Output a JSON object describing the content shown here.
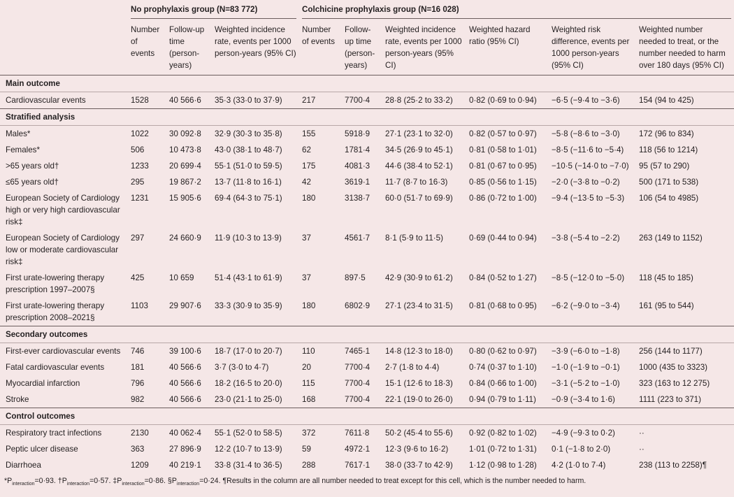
{
  "groups": [
    "No prophylaxis group (N=83 772)",
    "Colchicine prophylaxis group (N=16 028)"
  ],
  "columns": [
    "Number of events",
    "Follow-up time (person-years)",
    "Weighted incidence rate, events per 1000 person-years (95% CI)",
    "Number of events",
    "Follow-up time (person-years)",
    "Weighted incidence rate, events per 1000 person-years (95% CI)",
    "Weighted hazard ratio (95% CI)",
    "Weighted risk difference, events per 1000 person-years (95% CI)",
    "Weighted number needed to treat, or the number needed to harm over 180 days (95% CI)"
  ],
  "sections": [
    {
      "title": "Main outcome",
      "rows": [
        {
          "label": "Cardiovascular events",
          "cells": [
            "1528",
            "40 566·6",
            "35·3 (33·0 to 37·9)",
            "217",
            "7700·4",
            "28·8 (25·2 to 33·2)",
            "0·82 (0·69 to 0·94)",
            "−6·5 (−9·4 to −3·6)",
            "154 (94 to 425)"
          ]
        }
      ]
    },
    {
      "title": "Stratified analysis",
      "rows": [
        {
          "label": "Males*",
          "cells": [
            "1022",
            "30 092·8",
            "32·9 (30·3 to 35·8)",
            "155",
            "5918·9",
            "27·1 (23·1 to 32·0)",
            "0·82 (0·57 to 0·97)",
            "−5·8 (−8·6 to −3·0)",
            "172 (96 to 834)"
          ]
        },
        {
          "label": "Females*",
          "cells": [
            "506",
            "10 473·8",
            "43·0 (38·1 to 48·7)",
            "62",
            "1781·4",
            "34·5 (26·9 to 45·1)",
            "0·81 (0·58 to 1·01)",
            "−8·5 (−11·6 to −5·4)",
            "118 (56 to 1214)"
          ]
        },
        {
          "label": ">65 years old†",
          "cells": [
            "1233",
            "20 699·4",
            "55·1 (51·0 to 59·5)",
            "175",
            "4081·3",
            "44·6 (38·4 to 52·1)",
            "0·81 (0·67 to 0·95)",
            "−10·5 (−14·0 to −7·0)",
            "95 (57 to 290)"
          ]
        },
        {
          "label": "≤65 years old†",
          "cells": [
            "295",
            "19 867·2",
            "13·7 (11·8 to 16·1)",
            "42",
            "3619·1",
            "11·7 (8·7 to 16·3)",
            "0·85 (0·56 to 1·15)",
            "−2·0 (−3·8 to −0·2)",
            "500 (171 to 538)"
          ]
        },
        {
          "label": "European Society of Cardiology high or very high cardiovascular risk‡",
          "cells": [
            "1231",
            "15 905·6",
            "69·4 (64·3 to 75·1)",
            "180",
            "3138·7",
            "60·0 (51·7 to 69·9)",
            "0·86 (0·72 to 1·00)",
            "−9·4 (−13·5 to −5·3)",
            "106 (54 to 4985)"
          ]
        },
        {
          "label": "European Society of Cardiology low or moderate cardiovascular risk‡",
          "cells": [
            "297",
            "24 660·9",
            "11·9 (10·3 to 13·9)",
            "37",
            "4561·7",
            "8·1 (5·9 to 11·5)",
            "0·69 (0·44 to 0·94)",
            "−3·8 (−5·4 to −2·2)",
            "263 (149 to 1152)"
          ]
        },
        {
          "label": "First urate-lowering therapy prescription 1997–2007§",
          "cells": [
            "425",
            "10 659",
            "51·4 (43·1 to 61·9)",
            "37",
            "897·5",
            "42·9 (30·9 to 61·2)",
            "0·84 (0·52 to 1·27)",
            "−8·5 (−12·0 to −5·0)",
            "118 (45 to 185)"
          ]
        },
        {
          "label": "First urate-lowering therapy prescription 2008–2021§",
          "cells": [
            "1103",
            "29 907·6",
            "33·3 (30·9 to 35·9)",
            "180",
            "6802·9",
            "27·1 (23·4 to 31·5)",
            "0·81 (0·68 to 0·95)",
            "−6·2 (−9·0 to −3·4)",
            "161 (95 to 544)"
          ]
        }
      ]
    },
    {
      "title": "Secondary outcomes",
      "rows": [
        {
          "label": "First-ever cardiovascular events",
          "cells": [
            "746",
            "39 100·6",
            "18·7 (17·0 to 20·7)",
            "110",
            "7465·1",
            "14·8 (12·3 to 18·0)",
            "0·80 (0·62 to 0·97)",
            "−3·9 (−6·0 to −1·8)",
            "256 (144 to 1177)"
          ]
        },
        {
          "label": "Fatal cardiovascular events",
          "cells": [
            "181",
            "40 566·6",
            "3·7 (3·0 to 4·7)",
            "20",
            "7700·4",
            "2·7 (1·8 to 4·4)",
            "0·74 (0·37 to 1·10)",
            "−1·0 (−1·9 to −0·1)",
            "1000 (435 to 3323)"
          ]
        },
        {
          "label": "Myocardial infarction",
          "cells": [
            "796",
            "40 566·6",
            "18·2 (16·5 to 20·0)",
            "115",
            "7700·4",
            "15·1 (12·6 to 18·3)",
            "0·84 (0·66 to 1·00)",
            "−3·1 (−5·2 to −1·0)",
            "323 (163 to 12 275)"
          ]
        },
        {
          "label": "Stroke",
          "cells": [
            "982",
            "40 566·6",
            "23·0 (21·1 to 25·0)",
            "168",
            "7700·4",
            "22·1 (19·0 to 26·0)",
            "0·94 (0·79 to 1·11)",
            "−0·9 (−3·4 to 1·6)",
            "1111 (223 to 371)"
          ]
        }
      ]
    },
    {
      "title": "Control outcomes",
      "rows": [
        {
          "label": "Respiratory tract infections",
          "cells": [
            "2130",
            "40 062·4",
            "55·1 (52·0 to 58·5)",
            "372",
            "7611·8",
            "50·2 (45·4 to 55·6)",
            "0·92 (0·82 to 1·02)",
            "−4·9 (−9·3 to 0·2)",
            "··"
          ]
        },
        {
          "label": "Peptic ulcer disease",
          "cells": [
            "363",
            "27 896·9",
            "12·2 (10·7 to 13·9)",
            "59",
            "4972·1",
            "12·3 (9·6 to 16·2)",
            "1·01 (0·72 to 1·31)",
            "0·1 (−1·8 to 2·0)",
            "··"
          ]
        },
        {
          "label": "Diarrhoea",
          "cells": [
            "1209",
            "40 219·1",
            "33·8 (31·4 to 36·5)",
            "288",
            "7617·1",
            "38·0 (33·7 to 42·9)",
            "1·12 (0·98 to 1·28)",
            "4·2 (1·0 to 7·4)",
            "238 (113 to 2258)¶"
          ]
        }
      ]
    }
  ],
  "footnote": {
    "notes": [
      {
        "symbol": "*P",
        "sub": "interaction",
        "value": "=0·93."
      },
      {
        "symbol": "†P",
        "sub": "interaction",
        "value": "=0·57."
      },
      {
        "symbol": "‡P",
        "sub": "interaction",
        "value": "=0·86."
      },
      {
        "symbol": "§P",
        "sub": "interaction",
        "value": "=0·24."
      }
    ],
    "text": "¶Results in the column are all number needed to treat except for this cell, which is the number needed to harm."
  }
}
